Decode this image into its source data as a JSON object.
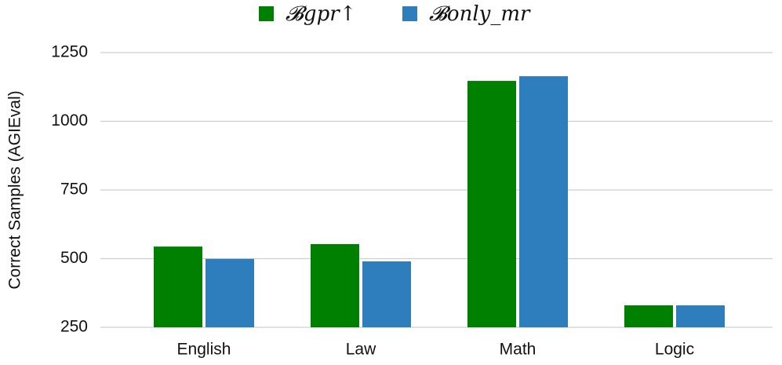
{
  "chart_data": {
    "type": "bar",
    "y_label": "Correct Samples (AGIEval)",
    "categories": [
      "English",
      "Law",
      "Math",
      "Logic"
    ],
    "series": [
      {
        "name": "𝓑gpr↑",
        "color": "#008000",
        "values": [
          544,
          553,
          1147,
          330
        ]
      },
      {
        "name": "𝓑only_mr",
        "color": "#2e7ebe",
        "values": [
          499,
          490,
          1164,
          330
        ]
      }
    ],
    "ylim": [
      250,
      1250
    ],
    "yticks": [
      250,
      500,
      750,
      1000,
      1250
    ],
    "grid": true,
    "legend": "top"
  }
}
